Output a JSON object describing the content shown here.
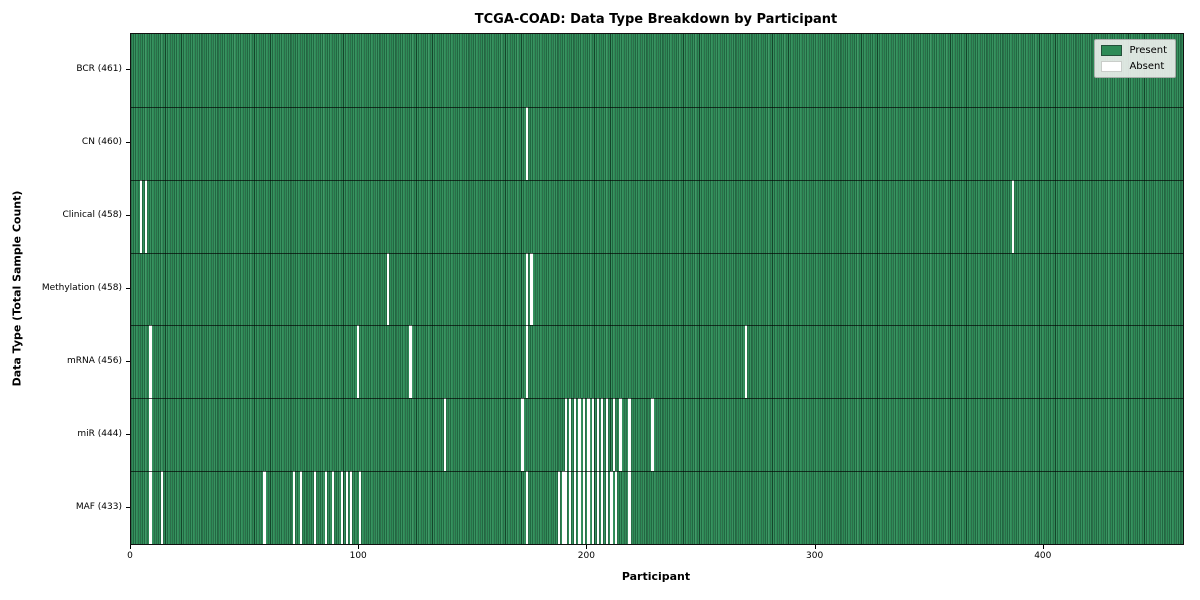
{
  "chart_data": {
    "type": "heatmap",
    "title": "TCGA-COAD: Data Type Breakdown by Participant",
    "xlabel": "Participant",
    "ylabel": "Data Type (Total Sample Count)",
    "n_participants": 461,
    "x_ticks": [
      0,
      100,
      200,
      300,
      400
    ],
    "legend_position": "upper right",
    "legend": [
      {
        "label": "Present",
        "color": "#2e8b57"
      },
      {
        "label": "Absent",
        "color": "#ffffff"
      }
    ],
    "value_encoding": {
      "present": 1,
      "absent": 0
    },
    "rows": [
      {
        "label": "BCR (461)",
        "name": "BCR",
        "total": 461,
        "absent_participants": []
      },
      {
        "label": "CN (460)",
        "name": "CN",
        "total": 460,
        "absent_participants": [
          173
        ]
      },
      {
        "label": "Clinical (458)",
        "name": "Clinical",
        "total": 458,
        "absent_participants": [
          4,
          6,
          386
        ]
      },
      {
        "label": "Methylation (458)",
        "name": "Methylation",
        "total": 458,
        "absent_participants": [
          112,
          173,
          175
        ]
      },
      {
        "label": "mRNA (456)",
        "name": "mRNA",
        "total": 456,
        "absent_participants": [
          8,
          99,
          122,
          173,
          269
        ]
      },
      {
        "label": "miR (444)",
        "name": "miR",
        "total": 444,
        "absent_participants": [
          8,
          137,
          171,
          190,
          192,
          194,
          196,
          198,
          200,
          202,
          204,
          206,
          208,
          211,
          214,
          218,
          228
        ]
      },
      {
        "label": "MAF (433)",
        "name": "MAF",
        "total": 433,
        "absent_participants": [
          8,
          13,
          58,
          71,
          74,
          80,
          85,
          88,
          92,
          94,
          96,
          100,
          173,
          187,
          189,
          190,
          192,
          194,
          196,
          198,
          200,
          202,
          204,
          206,
          208,
          210,
          212,
          218
        ]
      }
    ],
    "colors": {
      "present": "#2e8b57",
      "absent": "#ffffff",
      "cell_edge": "#14462b",
      "row_separator": "#1a1a1a",
      "legend_bg": "#eaeeea"
    }
  }
}
